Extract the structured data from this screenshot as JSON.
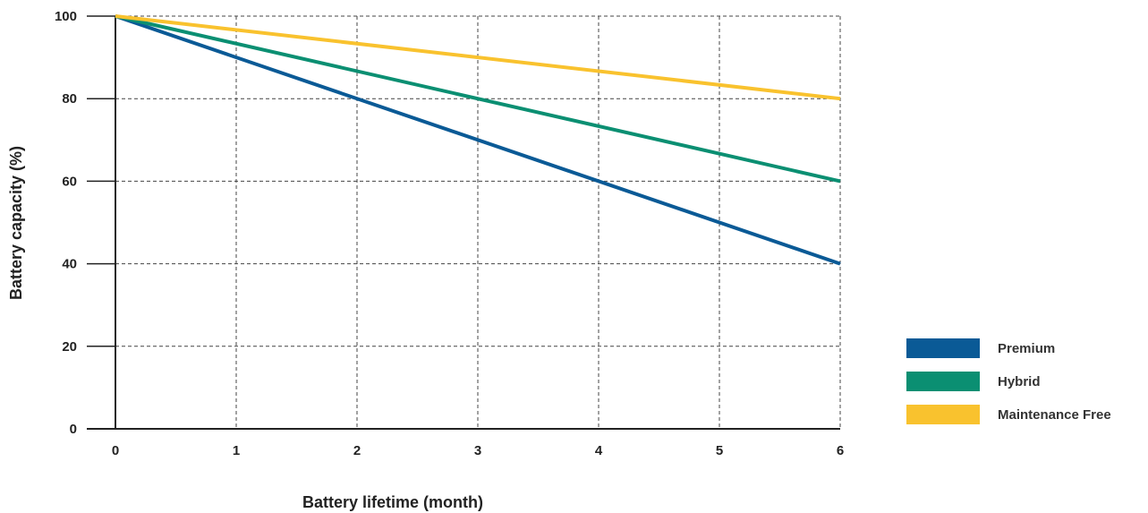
{
  "chart_data": {
    "type": "line",
    "title": "",
    "xlabel": "Battery lifetime (month)",
    "ylabel": "Battery capacity (%)",
    "x": [
      0,
      6
    ],
    "xlim": [
      0,
      6
    ],
    "ylim": [
      0,
      100
    ],
    "xticks": [
      "0",
      "1",
      "2",
      "3",
      "4",
      "5",
      "6"
    ],
    "yticks": [
      "0",
      "20",
      "40",
      "60",
      "80",
      "100"
    ],
    "grid": true,
    "grid_style": "dashed",
    "legend_position": "right",
    "series": [
      {
        "name": "Premium",
        "color": "#0a5a96",
        "values": [
          100,
          40
        ]
      },
      {
        "name": "Hybrid",
        "color": "#0b8f72",
        "values": [
          100,
          60
        ]
      },
      {
        "name": "Maintenance Free",
        "color": "#f9c22e",
        "values": [
          100,
          80
        ]
      }
    ]
  }
}
